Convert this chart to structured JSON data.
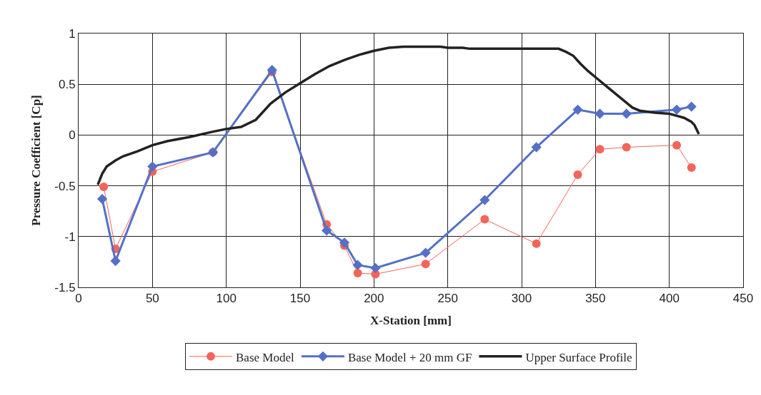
{
  "chart_data": {
    "type": "line",
    "xlabel": "X-Station [mm]",
    "ylabel": "Pressure Coefficient [Cp]",
    "xlim": [
      0,
      450
    ],
    "xticks": [
      0,
      50,
      100,
      150,
      200,
      250,
      300,
      350,
      400,
      450
    ],
    "ylim": [
      -1.5,
      1
    ],
    "yticks": [
      -1.5,
      -1,
      -0.5,
      0,
      0.5,
      1
    ],
    "grid": true,
    "legend": "bottom",
    "series": [
      {
        "name": "Base Model",
        "color": "#f4645a",
        "marker": "circle",
        "x": [
          17,
          25,
          50,
          91,
          131,
          168,
          180,
          189,
          201,
          235,
          275,
          310,
          338,
          353,
          371,
          405,
          415
        ],
        "values": [
          -0.51,
          -1.12,
          -0.36,
          -0.17,
          0.62,
          -0.88,
          -1.09,
          -1.36,
          -1.37,
          -1.27,
          -0.83,
          -1.07,
          -0.39,
          -0.14,
          -0.12,
          -0.1,
          -0.32
        ]
      },
      {
        "name": "Base Model + 20 mm GF",
        "color": "#5470c6",
        "marker": "diamond",
        "x": [
          16,
          25,
          50,
          91,
          131,
          168,
          180,
          189,
          201,
          235,
          275,
          310,
          338,
          353,
          371,
          405,
          415
        ],
        "values": [
          -0.63,
          -1.24,
          -0.31,
          -0.17,
          0.64,
          -0.94,
          -1.06,
          -1.28,
          -1.31,
          -1.16,
          -0.64,
          -0.12,
          0.25,
          0.21,
          0.21,
          0.25,
          0.28
        ]
      },
      {
        "name": "Upper Surface Profile",
        "color": "#222222",
        "marker": "none",
        "x": [
          13,
          16,
          19,
          25,
          30,
          40,
          50,
          60,
          75,
          90,
          100,
          110,
          120,
          130,
          140,
          150,
          160,
          170,
          180,
          190,
          200,
          210,
          220,
          245,
          250,
          260,
          265,
          300,
          325,
          330,
          335,
          340,
          345,
          350,
          360,
          370,
          375,
          380,
          390,
          400,
          405,
          410,
          415,
          417,
          420
        ],
        "values": [
          -0.49,
          -0.38,
          -0.31,
          -0.25,
          -0.21,
          -0.16,
          -0.1,
          -0.06,
          -0.02,
          0.03,
          0.06,
          0.08,
          0.15,
          0.31,
          0.42,
          0.51,
          0.6,
          0.68,
          0.74,
          0.79,
          0.83,
          0.86,
          0.87,
          0.87,
          0.86,
          0.86,
          0.85,
          0.85,
          0.85,
          0.82,
          0.78,
          0.7,
          0.63,
          0.57,
          0.45,
          0.33,
          0.27,
          0.24,
          0.22,
          0.21,
          0.19,
          0.17,
          0.13,
          0.1,
          0.01
        ]
      }
    ]
  }
}
